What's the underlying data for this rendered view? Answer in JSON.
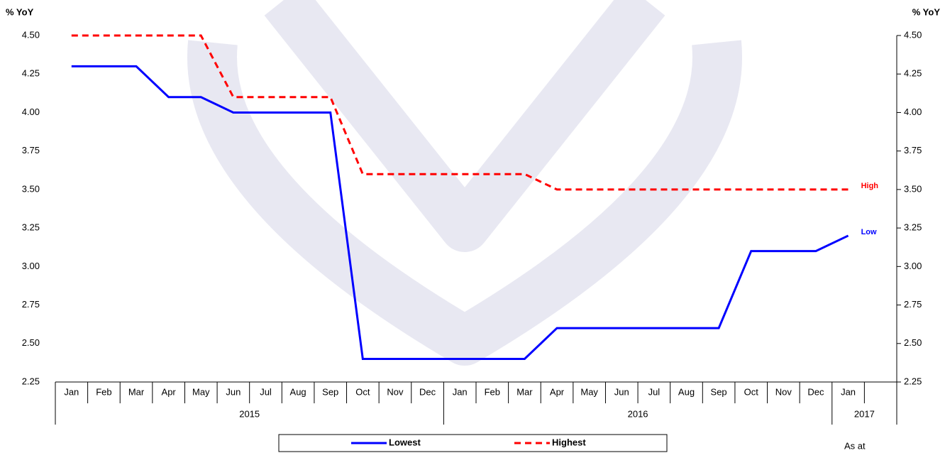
{
  "chart_data": {
    "type": "line",
    "y_label": "% YoY",
    "y2_label": "% YoY",
    "categories": [
      "Jan",
      "Feb",
      "Mar",
      "Apr",
      "May",
      "Jun",
      "Jul",
      "Aug",
      "Sep",
      "Oct",
      "Nov",
      "Dec",
      "Jan",
      "Feb",
      "Mar",
      "Apr",
      "May",
      "Jun",
      "Jul",
      "Aug",
      "Sep",
      "Oct",
      "Nov",
      "Dec",
      "Jan",
      null
    ],
    "year_groups": [
      {
        "label": "2015",
        "span": 12
      },
      {
        "label": "2016",
        "span": 12
      },
      {
        "label": "2017",
        "span": 2
      }
    ],
    "series": [
      {
        "name": "Lowest",
        "end_label": "Low",
        "color": "#0000ff",
        "dashed": false,
        "values": [
          4.3,
          4.3,
          4.3,
          4.1,
          4.1,
          4.0,
          4.0,
          4.0,
          4.0,
          2.4,
          2.4,
          2.4,
          2.4,
          2.4,
          2.4,
          2.6,
          2.6,
          2.6,
          2.6,
          2.6,
          2.6,
          3.1,
          3.1,
          3.1,
          3.2,
          null
        ]
      },
      {
        "name": "Highest",
        "end_label": "High",
        "color": "#ff0000",
        "dashed": true,
        "values": [
          4.5,
          4.5,
          4.5,
          4.5,
          4.5,
          4.1,
          4.1,
          4.1,
          4.1,
          3.6,
          3.6,
          3.6,
          3.6,
          3.6,
          3.6,
          3.5,
          3.5,
          3.5,
          3.5,
          3.5,
          3.5,
          3.5,
          3.5,
          3.5,
          3.5,
          null
        ]
      }
    ],
    "ylim": [
      2.25,
      4.5
    ],
    "yticks": [
      {
        "value": 2.25,
        "label": "2.25"
      },
      {
        "value": 2.5,
        "label": "2.50"
      },
      {
        "value": 2.75,
        "label": "2.75"
      },
      {
        "value": 3,
        "label": "3.00"
      },
      {
        "value": 3.25,
        "label": "3.25"
      },
      {
        "value": 3.5,
        "label": "3.50"
      },
      {
        "value": 3.75,
        "label": "3.75"
      },
      {
        "value": 4,
        "label": "4.00"
      },
      {
        "value": 4.25,
        "label": "4.25"
      },
      {
        "value": 4.5,
        "label": "4.50"
      }
    ],
    "y2lim": [
      2.25,
      4.5
    ],
    "y2ticks": [
      {
        "value": 2.25,
        "label": "2.25"
      },
      {
        "value": 2.5,
        "label": "2.50"
      },
      {
        "value": 2.75,
        "label": "2.75"
      },
      {
        "value": 3,
        "label": "3.00"
      },
      {
        "value": 3.25,
        "label": "3.25"
      },
      {
        "value": 3.5,
        "label": "3.50"
      },
      {
        "value": 3.75,
        "label": "3.75"
      },
      {
        "value": 4,
        "label": "4.00"
      },
      {
        "value": 4.25,
        "label": "4.25"
      },
      {
        "value": 4.5,
        "label": "4.50"
      }
    ],
    "footnote": "As at"
  }
}
